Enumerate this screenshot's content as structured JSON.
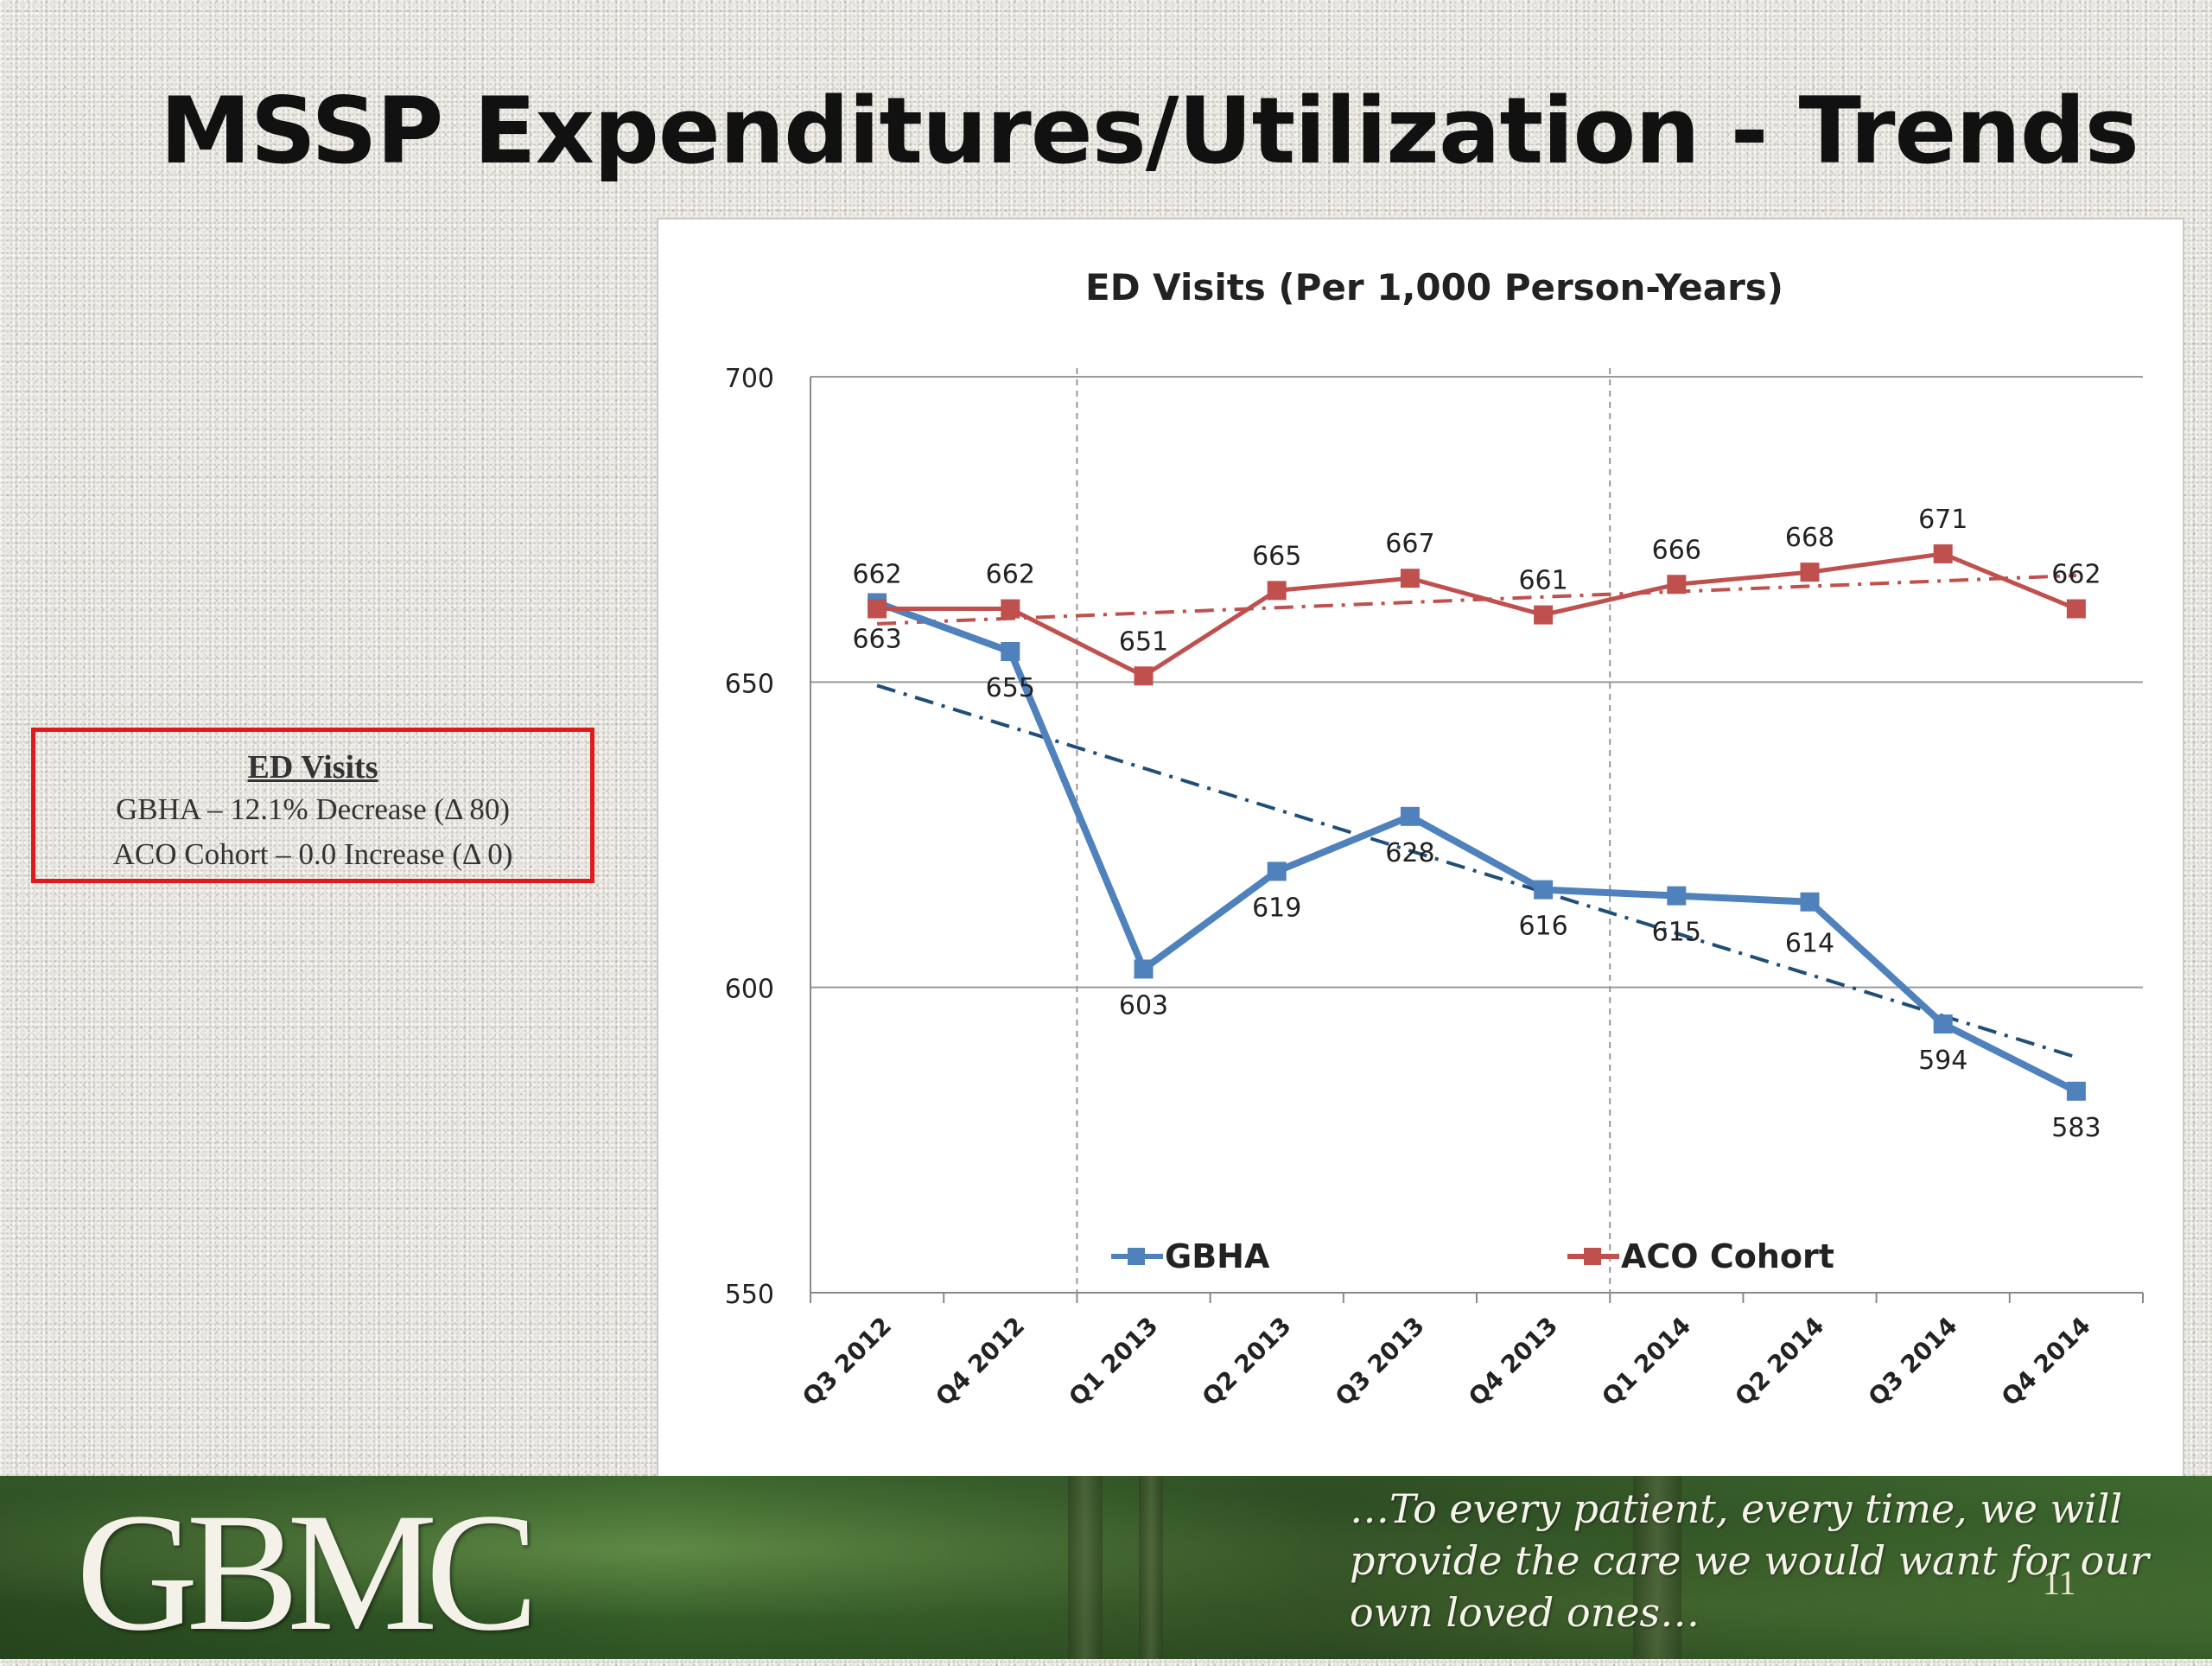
{
  "slide": {
    "title": "MSSP Expenditures/Utilization - Trends",
    "page_number": "11"
  },
  "callout": {
    "title": "ED Visits",
    "line1": "GBHA – 12.1% Decrease (Δ 80)",
    "line2": "ACO Cohort – 0.0 Increase (Δ 0)"
  },
  "footer": {
    "logo_text": "GBMC",
    "tagline_lines": [
      "…To every patient, every time, we will",
      "provide the care we would want for our",
      "own loved ones…"
    ]
  },
  "chart_data": {
    "type": "line",
    "title": "ED Visits (Per 1,000 Person-Years)",
    "categories": [
      "Q3 2012",
      "Q4 2012",
      "Q1 2013",
      "Q2 2013",
      "Q3 2013",
      "Q4 2013",
      "Q1 2014",
      "Q2 2014",
      "Q3 2014",
      "Q4 2014"
    ],
    "series": [
      {
        "name": "GBHA",
        "color": "#4f81bd",
        "values": [
          663,
          655,
          603,
          619,
          628,
          616,
          615,
          614,
          594,
          583
        ]
      },
      {
        "name": "ACO Cohort",
        "color": "#c0504d",
        "values": [
          662,
          662,
          651,
          665,
          667,
          661,
          666,
          668,
          671,
          662
        ]
      }
    ],
    "trendlines": [
      {
        "series": "GBHA",
        "color": "#1f4e79",
        "style": "dash-dot"
      },
      {
        "series": "ACO Cohort",
        "color": "#c0504d",
        "style": "dash-dot"
      }
    ],
    "ylim": [
      550,
      700
    ],
    "yticks": [
      550,
      600,
      650,
      700
    ],
    "gridlines": true,
    "vertical_markers_after": [
      "Q4 2012",
      "Q4 2013"
    ],
    "legend": "bottom",
    "data_labels": true
  }
}
